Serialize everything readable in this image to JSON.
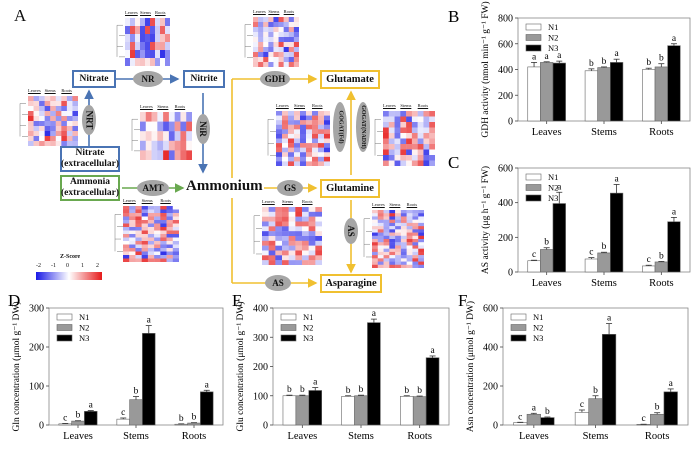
{
  "panel_a": {
    "letter": "A",
    "nodes": {
      "nitrate": "Nitrate",
      "nitrite": "Nitrite",
      "nitrate_ext_line1": "Nitrate",
      "nitrate_ext_line2": "(extracellular)",
      "ammonia_ext_line1": "Ammonia",
      "ammonia_ext_line2": "(extracellular)",
      "ammonium": "Ammonium",
      "glutamate": "Glutamate",
      "glutamine": "Glutamine",
      "asparagine": "Asparagine"
    },
    "enzymes": {
      "nr": "NR",
      "nir": "NiR",
      "nrt": "NRT",
      "amt": "AMT",
      "gdh": "GDH",
      "gs": "GS",
      "gogat_fd": "GOGAT(Fd)",
      "gogat_nadh": "GOGAT(NADH)",
      "as_vertical": "AS",
      "as_horizontal": "AS"
    },
    "heatmap_headers": [
      "Leaves",
      "Stems",
      "Roots"
    ],
    "zscore_legend": {
      "title": "Z-Score",
      "ticks": [
        "-2",
        "-1",
        "0",
        "1",
        "2"
      ],
      "low_color": "#1a1ae6",
      "mid_color": "#ffffff",
      "high_color": "#e61a1a"
    },
    "colors": {
      "nitrate_path": "#4a74b4",
      "ammonia_path": "#69a84f",
      "assimilation_path": "#f0c030",
      "enzyme_fill": "#a6a6a6"
    }
  },
  "chart_data": [
    {
      "id": "B",
      "type": "bar",
      "letter": "B",
      "categories": [
        "Leaves",
        "Stems",
        "Roots"
      ],
      "series": [
        {
          "name": "N1",
          "values": [
            420,
            390,
            400
          ],
          "errors": [
            35,
            15,
            10
          ],
          "letters": [
            "a",
            "b",
            "b"
          ]
        },
        {
          "name": "N2",
          "values": [
            455,
            415,
            420
          ],
          "errors": [
            5,
            5,
            25
          ],
          "letters": [
            "a",
            "b",
            "b"
          ]
        },
        {
          "name": "N3",
          "values": [
            450,
            455,
            585
          ],
          "errors": [
            15,
            25,
            15
          ],
          "letters": [
            "a",
            "a",
            "a"
          ]
        }
      ],
      "ylabel": "GDH activity (nmol min⁻¹ g⁻¹ FW)",
      "xlabel": "",
      "ylim": [
        0,
        800
      ],
      "yticks": [
        0,
        200,
        400,
        600,
        800
      ],
      "legend": "top-left",
      "grid": false
    },
    {
      "id": "C",
      "type": "bar",
      "letter": "C",
      "categories": [
        "Leaves",
        "Stems",
        "Roots"
      ],
      "series": [
        {
          "name": "N1",
          "values": [
            65,
            75,
            35
          ],
          "errors": [
            3,
            8,
            4
          ],
          "letters": [
            "c",
            "c",
            "c"
          ]
        },
        {
          "name": "N2",
          "values": [
            130,
            110,
            58
          ],
          "errors": [
            10,
            4,
            3
          ],
          "letters": [
            "b",
            "b",
            "b"
          ]
        },
        {
          "name": "N3",
          "values": [
            395,
            455,
            290
          ],
          "errors": [
            65,
            50,
            25
          ],
          "letters": [
            "a",
            "a",
            "a"
          ]
        }
      ],
      "ylabel": "AS activity (μg h⁻¹ g⁻¹ FW)",
      "xlabel": "",
      "ylim": [
        0,
        600
      ],
      "yticks": [
        0,
        200,
        400,
        600
      ],
      "legend": "top-left",
      "grid": false
    },
    {
      "id": "D",
      "type": "bar",
      "letter": "D",
      "categories": [
        "Leaves",
        "Stems",
        "Roots"
      ],
      "series": [
        {
          "name": "N1",
          "values": [
            3,
            15,
            2
          ],
          "errors": [
            1,
            3,
            1
          ],
          "letters": [
            "c",
            "c",
            "b"
          ]
        },
        {
          "name": "N2",
          "values": [
            10,
            65,
            5
          ],
          "errors": [
            1,
            8,
            1
          ],
          "letters": [
            "b",
            "b",
            "b"
          ]
        },
        {
          "name": "N3",
          "values": [
            35,
            235,
            85
          ],
          "errors": [
            2,
            20,
            4
          ],
          "letters": [
            "a",
            "a",
            "a"
          ]
        }
      ],
      "ylabel": "Gln concentration (μmol g⁻¹ DW)",
      "xlabel": "",
      "ylim": [
        0,
        300
      ],
      "yticks": [
        0,
        100,
        200,
        300
      ],
      "legend": "top-left",
      "grid": false
    },
    {
      "id": "E",
      "type": "bar",
      "letter": "E",
      "categories": [
        "Leaves",
        "Stems",
        "Roots"
      ],
      "series": [
        {
          "name": "N1",
          "values": [
            100,
            98,
            98
          ],
          "errors": [
            2,
            2,
            2
          ],
          "letters": [
            "b",
            "b",
            "b"
          ]
        },
        {
          "name": "N2",
          "values": [
            100,
            100,
            97
          ],
          "errors": [
            2,
            2,
            2
          ],
          "letters": [
            "b",
            "b",
            "b"
          ]
        },
        {
          "name": "N3",
          "values": [
            118,
            350,
            230
          ],
          "errors": [
            10,
            12,
            6
          ],
          "letters": [
            "a",
            "a",
            "a"
          ]
        }
      ],
      "ylabel": "Glu concentration (μmol g⁻¹ DW)",
      "xlabel": "",
      "ylim": [
        0,
        400
      ],
      "yticks": [
        0,
        100,
        200,
        300,
        400
      ],
      "legend": "top-left",
      "grid": false
    },
    {
      "id": "F",
      "type": "bar",
      "letter": "F",
      "categories": [
        "Leaves",
        "Stems",
        "Roots"
      ],
      "series": [
        {
          "name": "N1",
          "values": [
            12,
            65,
            3
          ],
          "errors": [
            2,
            12,
            1
          ],
          "letters": [
            "c",
            "c",
            "c"
          ]
        },
        {
          "name": "N2",
          "values": [
            55,
            135,
            55
          ],
          "errors": [
            5,
            15,
            8
          ],
          "letters": [
            "a",
            "b",
            "b"
          ]
        },
        {
          "name": "N3",
          "values": [
            38,
            465,
            170
          ],
          "errors": [
            3,
            55,
            15
          ],
          "letters": [
            "b",
            "a",
            "a"
          ]
        }
      ],
      "ylabel": "Asn concentration (μmol g⁻¹ DW)",
      "xlabel": "",
      "ylim": [
        0,
        600
      ],
      "yticks": [
        0,
        200,
        400,
        600
      ],
      "legend": "top-left",
      "grid": false
    }
  ],
  "series_colors": {
    "N1": "#ffffff",
    "N2": "#999999",
    "N3": "#000000"
  }
}
